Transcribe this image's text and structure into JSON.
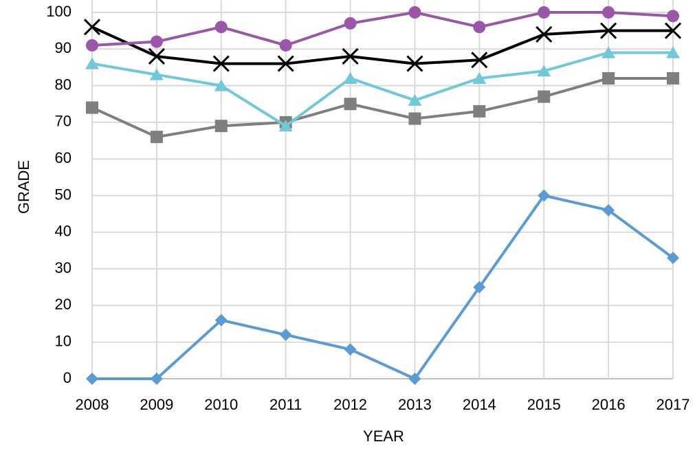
{
  "chart_data": {
    "type": "line",
    "x_label": "YEAR",
    "y_label": "GRADE",
    "x": [
      2008,
      2009,
      2010,
      2011,
      2012,
      2013,
      2014,
      2015,
      2016,
      2017
    ],
    "xlim": [
      2008,
      2017
    ],
    "xticks": [
      2008,
      2009,
      2010,
      2011,
      2012,
      2013,
      2014,
      2015,
      2016,
      2017
    ],
    "ylim": [
      0,
      100
    ],
    "yticks": [
      0,
      10,
      20,
      30,
      40,
      50,
      60,
      70,
      80,
      90,
      100
    ],
    "grid": true,
    "series": [
      {
        "color": "#5b9bd5",
        "marker": "diamond",
        "values": [
          0,
          0,
          16,
          12,
          8,
          0,
          25,
          50,
          46,
          33
        ]
      },
      {
        "color": "#7f7f7f",
        "marker": "square",
        "values": [
          74,
          66,
          69,
          70,
          75,
          71,
          73,
          77,
          82,
          82
        ]
      },
      {
        "color": "#70c8d8",
        "marker": "triangle",
        "values": [
          86,
          83,
          80,
          69,
          82,
          76,
          82,
          84,
          89,
          89
        ]
      },
      {
        "color": "#000000",
        "marker": "x",
        "values": [
          96,
          88,
          86,
          86,
          88,
          86,
          87,
          94,
          95,
          95
        ]
      },
      {
        "color": "#9a57a8",
        "marker": "circle",
        "values": [
          91,
          92,
          96,
          91,
          97,
          100,
          96,
          100,
          100,
          99
        ]
      }
    ]
  }
}
